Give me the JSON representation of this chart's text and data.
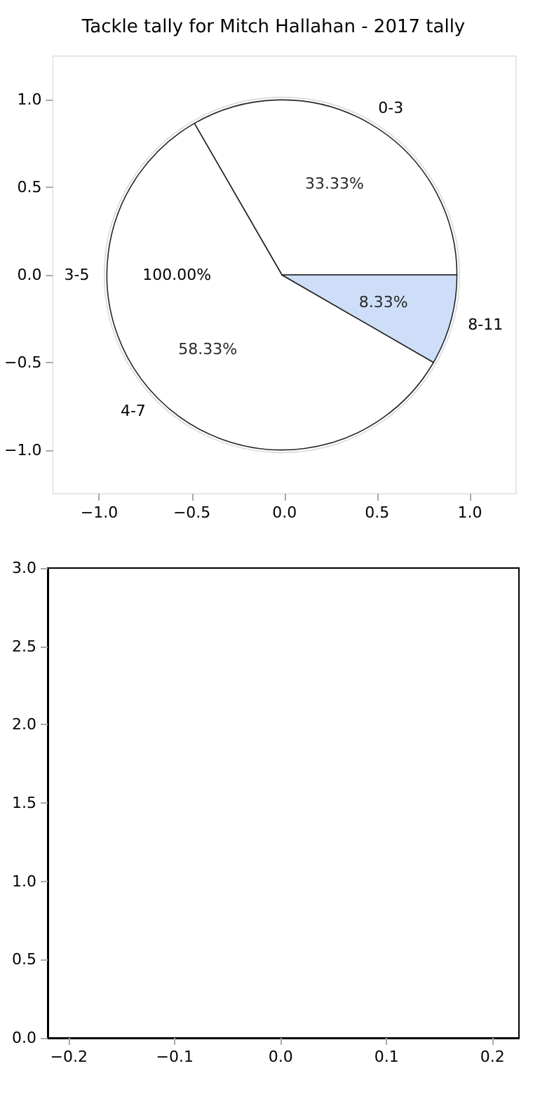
{
  "chart_data": [
    {
      "type": "scatter",
      "title": "Tackle tally for Mitch Hallahan - 2017 tally",
      "xlim": [
        -1.25,
        1.25
      ],
      "xticks": [
        {
          "value": -1,
          "label": "−1.0"
        },
        {
          "value": -0.5,
          "label": "−0.5"
        },
        {
          "value": 0,
          "label": "0.0"
        },
        {
          "value": 0.5,
          "label": "0.5"
        },
        {
          "value": 1,
          "label": "1.0"
        }
      ],
      "ylim": [
        -1.25,
        1.25
      ],
      "yticks": [
        {
          "value": -1,
          "label": "−1.0"
        },
        {
          "value": -0.5,
          "label": "−0.5"
        },
        {
          "value": 0,
          "label": "0.0"
        },
        {
          "value": 0.5,
          "label": "0.5"
        },
        {
          "value": 1,
          "label": "1.0"
        }
      ]
    },
    {
      "type": "pie",
      "categories": [
        "3-5"
      ],
      "values": [
        100
      ],
      "value_labels": [
        "100.00%"
      ],
      "colors": [
        "#ffffff"
      ]
    },
    {
      "type": "pie",
      "categories": [
        "0-3",
        "4-7",
        "8-11"
      ],
      "values": [
        33.33,
        58.33,
        8.33
      ],
      "value_labels": [
        "33.33%",
        "58.33%",
        "8.33%"
      ],
      "colors": [
        "#ffffff",
        "#ffffff",
        "#c6d9f7"
      ]
    },
    {
      "type": "scatter",
      "xlim": [
        -0.22,
        0.225
      ],
      "xticks": [
        {
          "value": -0.2,
          "label": "−0.2"
        },
        {
          "value": -0.1,
          "label": "−0.1"
        },
        {
          "value": 0,
          "label": "0.0"
        },
        {
          "value": 0.1,
          "label": "0.1"
        },
        {
          "value": 0.2,
          "label": "0.2"
        }
      ],
      "ylim": [
        0,
        3
      ],
      "yticks": [
        {
          "value": 0,
          "label": "0.0"
        },
        {
          "value": 0.5,
          "label": "0.5"
        },
        {
          "value": 1,
          "label": "1.0"
        },
        {
          "value": 1.5,
          "label": "1.5"
        },
        {
          "value": 2,
          "label": "2.0"
        },
        {
          "value": 2.5,
          "label": "2.5"
        },
        {
          "value": 3,
          "label": "3.0"
        }
      ]
    }
  ]
}
